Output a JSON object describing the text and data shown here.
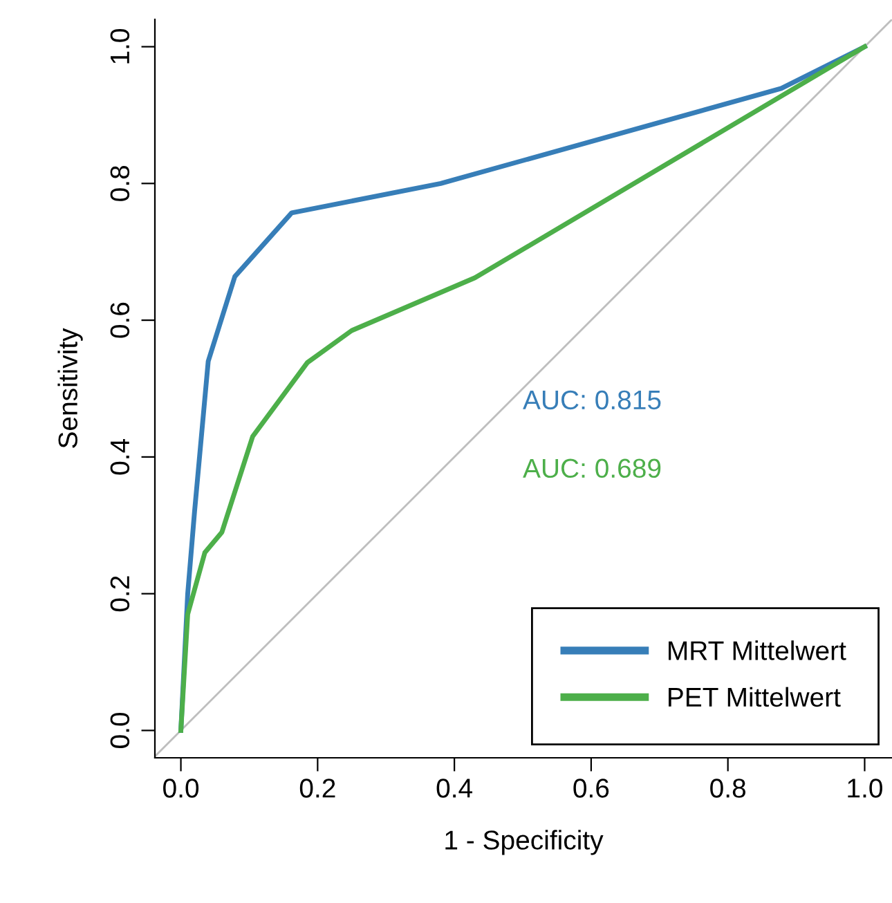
{
  "chart_data": {
    "type": "line",
    "xlabel": "1 - Specificity",
    "ylabel": "Sensitivity",
    "xlim": [
      -0.038,
      1.04
    ],
    "ylim": [
      -0.04,
      1.04
    ],
    "xticks": [
      {
        "value": 0,
        "label": "0.0"
      },
      {
        "value": 0.2,
        "label": "0.2"
      },
      {
        "value": 0.4,
        "label": "0.4"
      },
      {
        "value": 0.6,
        "label": "0.6"
      },
      {
        "value": 0.8,
        "label": "0.8"
      },
      {
        "value": 1,
        "label": "1.0"
      }
    ],
    "yticks": [
      {
        "value": 0,
        "label": "0.0"
      },
      {
        "value": 0.2,
        "label": "0.2"
      },
      {
        "value": 0.4,
        "label": "0.4"
      },
      {
        "value": 0.6,
        "label": "0.6"
      },
      {
        "value": 0.8,
        "label": "0.8"
      },
      {
        "value": 1,
        "label": "1.0"
      }
    ],
    "series": [
      {
        "name": "MRT Mittelwert",
        "color": "#377eb8",
        "x": [
          0,
          0.01,
          0.02,
          0.04,
          0.079,
          0.162,
          0.38,
          0.878,
          1
        ],
        "values": [
          0,
          0.2,
          0.32,
          0.54,
          0.664,
          0.757,
          0.8,
          0.939,
          1
        ]
      },
      {
        "name": "PET Mittelwert",
        "color": "#4daf4a",
        "x": [
          0,
          0.01,
          0.035,
          0.06,
          0.105,
          0.185,
          0.25,
          0.43,
          1
        ],
        "values": [
          0,
          0.17,
          0.26,
          0.29,
          0.43,
          0.538,
          0.585,
          0.662,
          1
        ]
      },
      {
        "color": "#bebebe",
        "x": [
          -0.038,
          1.04
        ],
        "values": [
          -0.038,
          1.04
        ]
      }
    ],
    "annotations": [
      "AUC: 0.815",
      "AUC: 0.689"
    ],
    "legend": "bottom right",
    "grid": false,
    "marker": "none",
    "line_style": "solid"
  }
}
